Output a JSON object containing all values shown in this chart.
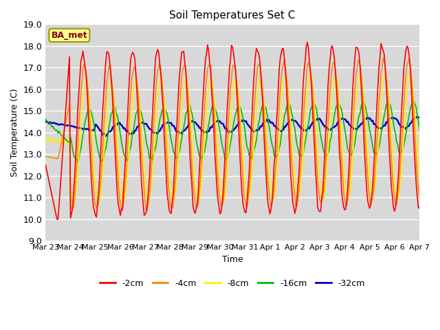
{
  "title": "Soil Temperatures Set C",
  "xlabel": "Time",
  "ylabel": "Soil Temperature (C)",
  "ylim": [
    9.0,
    19.0
  ],
  "yticks": [
    9.0,
    10.0,
    11.0,
    12.0,
    13.0,
    14.0,
    15.0,
    16.0,
    17.0,
    18.0,
    19.0
  ],
  "xtick_labels": [
    "Mar 23",
    "Mar 24",
    "Mar 25",
    "Mar 26",
    "Mar 27",
    "Mar 28",
    "Mar 29",
    "Mar 30",
    "Mar 31",
    "Apr 1",
    "Apr 2",
    "Apr 3",
    "Apr 4",
    "Apr 5",
    "Apr 6",
    "Apr 7"
  ],
  "series_colors": [
    "#ff0000",
    "#ff8800",
    "#ffee00",
    "#00bb00",
    "#0000cc"
  ],
  "series_labels": [
    "-2cm",
    "-4cm",
    "-8cm",
    "-16cm",
    "-32cm"
  ],
  "line_widths": [
    1.2,
    1.2,
    1.2,
    1.2,
    1.8
  ],
  "background_color": "#d8d8d8",
  "fig_color": "#ffffff",
  "label_box_text": "BA_met",
  "label_box_facecolor": "#ffff99",
  "label_box_edgecolor": "#999900",
  "label_text_color": "#880000",
  "n_days": 16,
  "samples_per_day": 24
}
